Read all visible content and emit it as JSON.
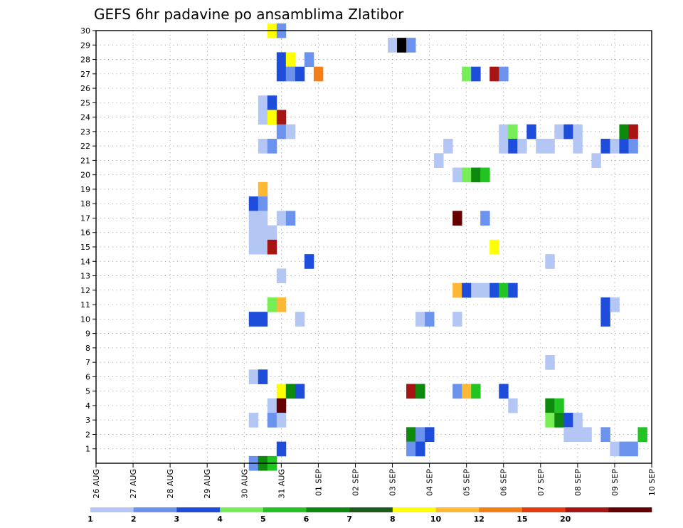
{
  "chart_data": {
    "type": "heatmap",
    "title": "GEFS 6hr padavine po ansamblima Zlatibor",
    "xlabel": "",
    "ylabel": "",
    "x_ticks": [
      "26 AUG",
      "27 AUG",
      "28 AUG",
      "29 AUG",
      "30 AUG",
      "31 AUG",
      "01 SEP",
      "02 SEP",
      "03 SEP",
      "04 SEP",
      "05 SEP",
      "06 SEP",
      "07 SEP",
      "08 SEP",
      "09 SEP",
      "10 SEP"
    ],
    "x_range_days": [
      0,
      15
    ],
    "y_ticks": [
      1,
      2,
      3,
      4,
      5,
      6,
      7,
      8,
      9,
      10,
      11,
      12,
      13,
      14,
      15,
      16,
      17,
      18,
      19,
      20,
      21,
      22,
      23,
      24,
      25,
      26,
      27,
      28,
      29,
      30
    ],
    "y_range": [
      0,
      30
    ],
    "grid": true,
    "colorbar": {
      "position": "bottom",
      "labels": [
        "1",
        "2",
        "3",
        "4",
        "5",
        "6",
        "7",
        "8",
        "10",
        "12",
        "15",
        "20"
      ],
      "colors": [
        "#b3c6f4",
        "#6b93ee",
        "#1f4ddb",
        "#77ee55",
        "#22c422",
        "#0d8a0d",
        "#1b5e1b",
        "#ffff00",
        "#ffb833",
        "#f57f17",
        "#e53a10",
        "#a61414",
        "#660000"
      ]
    },
    "cells": [
      {
        "member": 30,
        "day": 4.75,
        "level": 8
      },
      {
        "member": 30,
        "day": 5.0,
        "level": 2
      },
      {
        "member": 29,
        "day": 8.0,
        "level": 1
      },
      {
        "member": 29,
        "day": 8.25,
        "level": 14
      },
      {
        "member": 29,
        "day": 8.5,
        "level": 2
      },
      {
        "member": 28,
        "day": 5.0,
        "level": 3
      },
      {
        "member": 28,
        "day": 5.25,
        "level": 8
      },
      {
        "member": 28,
        "day": 5.75,
        "level": 2
      },
      {
        "member": 27,
        "day": 5.0,
        "level": 3
      },
      {
        "member": 27,
        "day": 5.25,
        "level": 2
      },
      {
        "member": 27,
        "day": 5.5,
        "level": 3
      },
      {
        "member": 27,
        "day": 6.0,
        "level": 10
      },
      {
        "member": 27,
        "day": 10.0,
        "level": 4
      },
      {
        "member": 27,
        "day": 10.25,
        "level": 3
      },
      {
        "member": 27,
        "day": 10.75,
        "level": 12
      },
      {
        "member": 27,
        "day": 11.0,
        "level": 2
      },
      {
        "member": 25,
        "day": 4.5,
        "level": 1
      },
      {
        "member": 25,
        "day": 4.75,
        "level": 3
      },
      {
        "member": 24,
        "day": 4.5,
        "level": 1
      },
      {
        "member": 24,
        "day": 4.75,
        "level": 8
      },
      {
        "member": 24,
        "day": 5.0,
        "level": 12
      },
      {
        "member": 23,
        "day": 5.0,
        "level": 2
      },
      {
        "member": 23,
        "day": 5.25,
        "level": 1
      },
      {
        "member": 23,
        "day": 11.0,
        "level": 1
      },
      {
        "member": 23,
        "day": 11.25,
        "level": 4
      },
      {
        "member": 23,
        "day": 11.75,
        "level": 3
      },
      {
        "member": 23,
        "day": 12.5,
        "level": 1
      },
      {
        "member": 23,
        "day": 12.75,
        "level": 3
      },
      {
        "member": 23,
        "day": 13.0,
        "level": 1
      },
      {
        "member": 23,
        "day": 14.25,
        "level": 6
      },
      {
        "member": 23,
        "day": 14.5,
        "level": 12
      },
      {
        "member": 22,
        "day": 4.5,
        "level": 1
      },
      {
        "member": 22,
        "day": 4.75,
        "level": 2
      },
      {
        "member": 22,
        "day": 9.5,
        "level": 1
      },
      {
        "member": 22,
        "day": 11.0,
        "level": 1
      },
      {
        "member": 22,
        "day": 11.25,
        "level": 3
      },
      {
        "member": 22,
        "day": 11.5,
        "level": 1
      },
      {
        "member": 22,
        "day": 12.0,
        "level": 1
      },
      {
        "member": 22,
        "day": 12.25,
        "level": 1
      },
      {
        "member": 22,
        "day": 13.0,
        "level": 1
      },
      {
        "member": 22,
        "day": 13.75,
        "level": 3
      },
      {
        "member": 22,
        "day": 14.0,
        "level": 1
      },
      {
        "member": 22,
        "day": 14.25,
        "level": 3
      },
      {
        "member": 22,
        "day": 14.5,
        "level": 2
      },
      {
        "member": 21,
        "day": 9.25,
        "level": 1
      },
      {
        "member": 21,
        "day": 13.5,
        "level": 1
      },
      {
        "member": 20,
        "day": 9.75,
        "level": 1
      },
      {
        "member": 20,
        "day": 10.0,
        "level": 4
      },
      {
        "member": 20,
        "day": 10.25,
        "level": 6
      },
      {
        "member": 20,
        "day": 10.5,
        "level": 5
      },
      {
        "member": 19,
        "day": 4.5,
        "level": 9
      },
      {
        "member": 18,
        "day": 4.25,
        "level": 3
      },
      {
        "member": 18,
        "day": 4.5,
        "level": 2
      },
      {
        "member": 17,
        "day": 4.25,
        "level": 1
      },
      {
        "member": 17,
        "day": 4.5,
        "level": 1
      },
      {
        "member": 17,
        "day": 5.0,
        "level": 1
      },
      {
        "member": 17,
        "day": 5.25,
        "level": 2
      },
      {
        "member": 17,
        "day": 9.75,
        "level": 13
      },
      {
        "member": 17,
        "day": 10.5,
        "level": 2
      },
      {
        "member": 16,
        "day": 4.25,
        "level": 1
      },
      {
        "member": 16,
        "day": 4.5,
        "level": 1
      },
      {
        "member": 16,
        "day": 4.75,
        "level": 1
      },
      {
        "member": 15,
        "day": 4.25,
        "level": 1
      },
      {
        "member": 15,
        "day": 4.5,
        "level": 1
      },
      {
        "member": 15,
        "day": 4.75,
        "level": 12
      },
      {
        "member": 15,
        "day": 10.75,
        "level": 8
      },
      {
        "member": 14,
        "day": 5.75,
        "level": 3
      },
      {
        "member": 14,
        "day": 12.25,
        "level": 1
      },
      {
        "member": 13,
        "day": 5.0,
        "level": 1
      },
      {
        "member": 12,
        "day": 9.75,
        "level": 9
      },
      {
        "member": 12,
        "day": 10.0,
        "level": 3
      },
      {
        "member": 12,
        "day": 10.25,
        "level": 1
      },
      {
        "member": 12,
        "day": 10.5,
        "level": 1
      },
      {
        "member": 12,
        "day": 10.75,
        "level": 3
      },
      {
        "member": 12,
        "day": 11.0,
        "level": 5
      },
      {
        "member": 12,
        "day": 11.25,
        "level": 3
      },
      {
        "member": 11,
        "day": 4.75,
        "level": 4
      },
      {
        "member": 11,
        "day": 5.0,
        "level": 9
      },
      {
        "member": 11,
        "day": 13.75,
        "level": 3
      },
      {
        "member": 11,
        "day": 14.0,
        "level": 1
      },
      {
        "member": 10,
        "day": 4.25,
        "level": 3
      },
      {
        "member": 10,
        "day": 4.5,
        "level": 3
      },
      {
        "member": 10,
        "day": 5.5,
        "level": 1
      },
      {
        "member": 10,
        "day": 8.75,
        "level": 1
      },
      {
        "member": 10,
        "day": 9.0,
        "level": 2
      },
      {
        "member": 10,
        "day": 9.75,
        "level": 1
      },
      {
        "member": 10,
        "day": 13.75,
        "level": 3
      },
      {
        "member": 7,
        "day": 12.25,
        "level": 1
      },
      {
        "member": 6,
        "day": 4.25,
        "level": 1
      },
      {
        "member": 6,
        "day": 4.5,
        "level": 3
      },
      {
        "member": 5,
        "day": 5.0,
        "level": 8
      },
      {
        "member": 5,
        "day": 5.25,
        "level": 6
      },
      {
        "member": 5,
        "day": 5.5,
        "level": 3
      },
      {
        "member": 5,
        "day": 8.5,
        "level": 12
      },
      {
        "member": 5,
        "day": 8.75,
        "level": 6
      },
      {
        "member": 5,
        "day": 9.75,
        "level": 2
      },
      {
        "member": 5,
        "day": 10.0,
        "level": 9
      },
      {
        "member": 5,
        "day": 10.25,
        "level": 5
      },
      {
        "member": 5,
        "day": 11.0,
        "level": 3
      },
      {
        "member": 4,
        "day": 4.75,
        "level": 1
      },
      {
        "member": 4,
        "day": 5.0,
        "level": 13
      },
      {
        "member": 4,
        "day": 11.25,
        "level": 1
      },
      {
        "member": 4,
        "day": 12.25,
        "level": 6
      },
      {
        "member": 4,
        "day": 12.5,
        "level": 5
      },
      {
        "member": 3,
        "day": 4.25,
        "level": 1
      },
      {
        "member": 3,
        "day": 4.75,
        "level": 2
      },
      {
        "member": 3,
        "day": 5.0,
        "level": 1
      },
      {
        "member": 3,
        "day": 12.25,
        "level": 4
      },
      {
        "member": 3,
        "day": 12.5,
        "level": 6
      },
      {
        "member": 3,
        "day": 12.75,
        "level": 3
      },
      {
        "member": 3,
        "day": 13.0,
        "level": 1
      },
      {
        "member": 2,
        "day": 8.5,
        "level": 6
      },
      {
        "member": 2,
        "day": 8.75,
        "level": 2
      },
      {
        "member": 2,
        "day": 9.0,
        "level": 3
      },
      {
        "member": 2,
        "day": 12.75,
        "level": 1
      },
      {
        "member": 2,
        "day": 13.0,
        "level": 1
      },
      {
        "member": 2,
        "day": 13.25,
        "level": 1
      },
      {
        "member": 2,
        "day": 13.75,
        "level": 2
      },
      {
        "member": 2,
        "day": 14.75,
        "level": 5
      },
      {
        "member": 1,
        "day": 5.0,
        "level": 3
      },
      {
        "member": 1,
        "day": 8.5,
        "level": 2
      },
      {
        "member": 1,
        "day": 8.75,
        "level": 3
      },
      {
        "member": 1,
        "day": 14.0,
        "level": 1
      },
      {
        "member": 1,
        "day": 14.25,
        "level": 2
      },
      {
        "member": 1,
        "day": 14.5,
        "level": 2
      },
      {
        "member": 0,
        "day": 4.25,
        "level": 2
      },
      {
        "member": 0,
        "day": 4.5,
        "level": 6
      },
      {
        "member": 0,
        "day": 4.75,
        "level": 5
      }
    ]
  }
}
